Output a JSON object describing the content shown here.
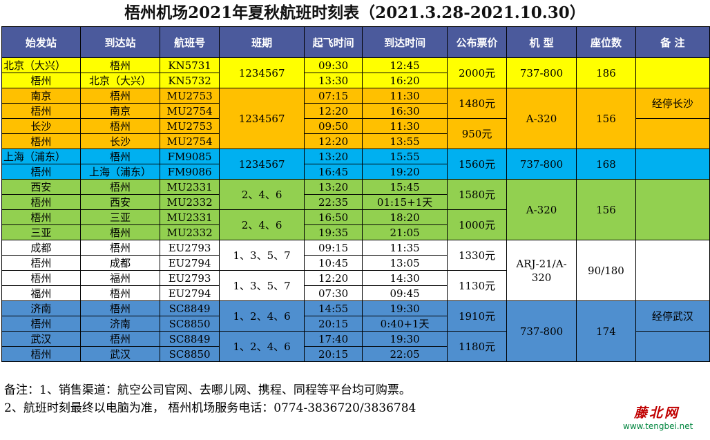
{
  "title": "梧州机场2021年夏秋航班时刻表（2021.3.28-2021.10.30）",
  "headers": [
    "始发站",
    "到达站",
    "航班号",
    "班期",
    "起飞时间",
    "到达时间",
    "公布票价",
    "机 型",
    "座位数",
    "备 注"
  ],
  "rows": [
    {
      "from": "北京（大兴）",
      "to": "梧州",
      "flight": "KN5731",
      "dep": "09:30",
      "arr": "12:45"
    },
    {
      "from": "梧州",
      "to": "北京（大兴）",
      "flight": "KN5732",
      "dep": "13:30",
      "arr": "16:20"
    },
    {
      "from": "南京",
      "to": "梧州",
      "flight": "MU2753",
      "dep": "07:15",
      "arr": "11:30"
    },
    {
      "from": "梧州",
      "to": "南京",
      "flight": "MU2754",
      "dep": "12:20",
      "arr": "16:30"
    },
    {
      "from": "长沙",
      "to": "梧州",
      "flight": "MU2753",
      "dep": "09:50",
      "arr": "11:30"
    },
    {
      "from": "梧州",
      "to": "长沙",
      "flight": "MU2754",
      "dep": "12:20",
      "arr": "13:55"
    },
    {
      "from": "上海（浦东）",
      "to": "梧州",
      "flight": "FM9085",
      "dep": "13:20",
      "arr": "15:55"
    },
    {
      "from": "梧州",
      "to": "上海（浦东）",
      "flight": "FM9086",
      "dep": "16:45",
      "arr": "19:20"
    },
    {
      "from": "西安",
      "to": "梧州",
      "flight": "MU2331",
      "dep": "13:20",
      "arr": "15:45"
    },
    {
      "from": "梧州",
      "to": "西安",
      "flight": "MU2332",
      "dep": "22:35",
      "arr": "01:15+1天"
    },
    {
      "from": "梧州",
      "to": "三亚",
      "flight": "MU2331",
      "dep": "16:50",
      "arr": "18:20"
    },
    {
      "from": "三亚",
      "to": "梧州",
      "flight": "MU2332",
      "dep": "19:35",
      "arr": "21:05"
    },
    {
      "from": "成都",
      "to": "梧州",
      "flight": "EU2793",
      "dep": "09:15",
      "arr": "11:35"
    },
    {
      "from": "梧州",
      "to": "成都",
      "flight": "EU2794",
      "dep": "10:45",
      "arr": "13:05"
    },
    {
      "from": "梧州",
      "to": "福州",
      "flight": "EU2793",
      "dep": "12:20",
      "arr": "14:30"
    },
    {
      "from": "福州",
      "to": "梧州",
      "flight": "EU2794",
      "dep": "07:30",
      "arr": "09:45"
    },
    {
      "from": "济南",
      "to": "梧州",
      "flight": "SC8849",
      "dep": "14:55",
      "arr": "19:30"
    },
    {
      "from": "梧州",
      "to": "济南",
      "flight": "SC8850",
      "dep": "20:15",
      "arr": "0:40+1天"
    },
    {
      "from": "武汉",
      "to": "梧州",
      "flight": "SC8849",
      "dep": "17:40",
      "arr": "19:30"
    },
    {
      "from": "梧州",
      "to": "武汉",
      "flight": "SC8850",
      "dep": "20:15",
      "arr": "22:05"
    }
  ],
  "schedule": [
    "1234567",
    "1234567",
    "1234567",
    "2、4、6",
    "2、4、6",
    "1、3、5、7",
    "1、3、5、7",
    "1、2、4、6",
    "1、2、4、6"
  ],
  "prices": [
    "2000元",
    "1480元",
    "950元",
    "1560元",
    "1580元",
    "1000元",
    "1330元",
    "1130元",
    "1910元",
    "1180元"
  ],
  "aircraft": [
    "737-800",
    "A-320",
    "737-800",
    "A-320",
    "ARJ-21/A-320",
    "737-800"
  ],
  "seats": [
    "186",
    "156",
    "168",
    "156",
    "90/180",
    "174"
  ],
  "remarks": [
    "经停长沙",
    "经停武汉"
  ],
  "notes": [
    "备注：1、销售渠道：航空公司官网、去哪儿网、携程、同程等平台均可购票。",
    "2、航班时刻最终以电脑为准，  梧州机场服务电话：0774-3836720/3836784"
  ],
  "watermark": {
    "name": "藤北网",
    "url": "www.tengbei.net"
  },
  "colors": {
    "header": "#4b5a9c",
    "yellow": "#ffff00",
    "orange": "#ffc000",
    "cyan": "#00b0f0",
    "green": "#92d050",
    "white": "#ffffff",
    "blue": "#4f8fcf",
    "watermark": "#c00000"
  }
}
